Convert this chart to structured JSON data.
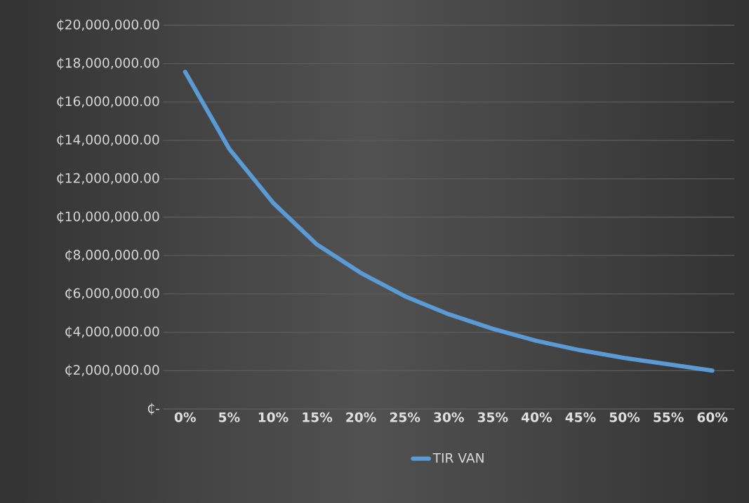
{
  "chart_data": {
    "type": "line",
    "categories": [
      "0%",
      "5%",
      "10%",
      "15%",
      "20%",
      "25%",
      "30%",
      "35%",
      "40%",
      "45%",
      "50%",
      "55%",
      "60%"
    ],
    "series": [
      {
        "name": "TIR VAN",
        "color": "#5b9bd5",
        "values": [
          17570000,
          13570000,
          10750000,
          8570000,
          7090000,
          5880000,
          4940000,
          4180000,
          3550000,
          3060000,
          2660000,
          2330000,
          2000000
        ]
      }
    ],
    "ylim": [
      0,
      20000000
    ],
    "yticks": [
      {
        "value": 0,
        "label": "₵-"
      },
      {
        "value": 2000000,
        "label": "₵2,000,000.00"
      },
      {
        "value": 4000000,
        "label": "₵4,000,000.00"
      },
      {
        "value": 6000000,
        "label": "₵6,000,000.00"
      },
      {
        "value": 8000000,
        "label": "₵8,000,000.00"
      },
      {
        "value": 10000000,
        "label": "₵10,000,000.00"
      },
      {
        "value": 12000000,
        "label": "₵12,000,000.00"
      },
      {
        "value": 14000000,
        "label": "₵14,000,000.00"
      },
      {
        "value": 16000000,
        "label": "₵16,000,000.00"
      },
      {
        "value": 18000000,
        "label": "₵18,000,000.00"
      },
      {
        "value": 20000000,
        "label": "₵20,000,000.00"
      }
    ],
    "grid": "y",
    "legend": "bottom",
    "marker": "none",
    "line_style": "solid"
  }
}
